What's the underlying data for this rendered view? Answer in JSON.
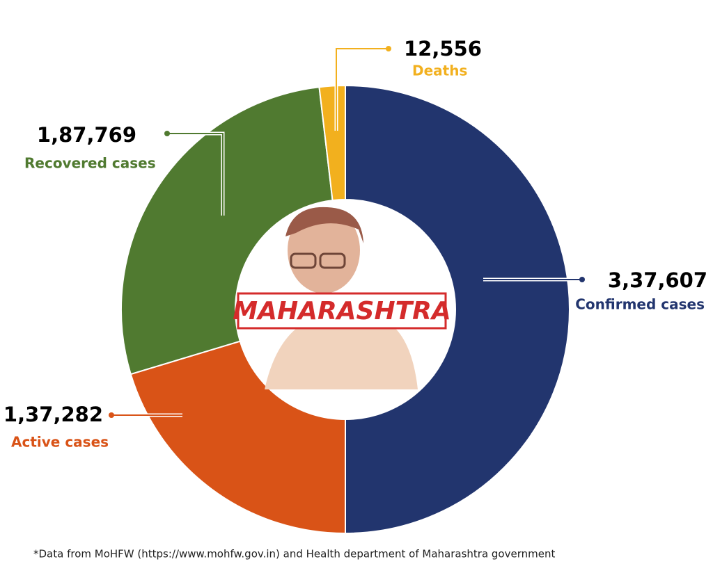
{
  "chart_data": {
    "type": "donut",
    "categories": [
      "Confirmed cases",
      "Active cases",
      "Recovered cases",
      "Deaths"
    ],
    "values": [
      337607,
      137282,
      187769,
      12556
    ],
    "value_labels": [
      "3,37,607",
      "1,37,282",
      "1,87,769",
      "12,556"
    ],
    "colors": [
      "#22356e",
      "#d95317",
      "#507a30",
      "#f2b01e"
    ],
    "center_label": "MAHARASHTRA",
    "footnote": "*Data from MoHFW (https://www.mohfw.gov.in) and Health department of Maharashtra government"
  }
}
